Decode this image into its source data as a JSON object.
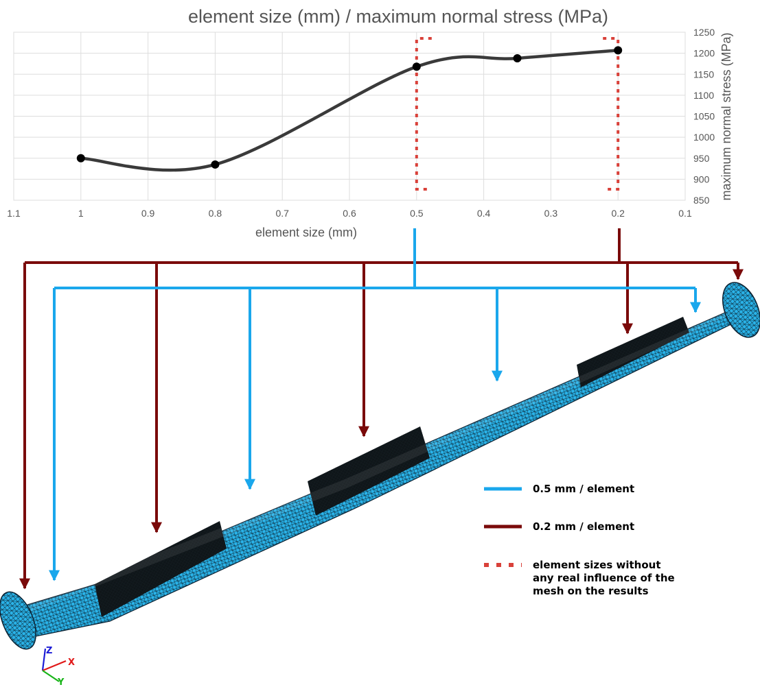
{
  "chart_data": {
    "type": "line",
    "title": "element size (mm) / maximum normal stress (MPa)",
    "xlabel": "element size (mm)",
    "ylabel": "maximum normal stress (MPa)",
    "x_reversed": true,
    "xlim": [
      0.1,
      1.1
    ],
    "ylim": [
      850,
      1250
    ],
    "xticks": [
      "1.1",
      "1",
      "0.9",
      "0.8",
      "0.7",
      "0.6",
      "0.5",
      "0.4",
      "0.3",
      "0.2",
      "0.1"
    ],
    "yticks": [
      "850",
      "900",
      "950",
      "1000",
      "1050",
      "1100",
      "1150",
      "1200",
      "1250"
    ],
    "grid": true,
    "y_axis_side": "right",
    "series": [
      {
        "x": [
          1.0,
          0.8,
          0.5,
          0.35,
          0.2
        ],
        "y": [
          950,
          935,
          1168,
          1188,
          1207
        ],
        "smooth": true
      }
    ],
    "highlight_brackets": [
      0.5,
      0.2
    ]
  },
  "legend": {
    "items": [
      {
        "label": "0.5 mm / element",
        "color": "#1aa7ec",
        "style": "solid"
      },
      {
        "label": "0.2 mm / element",
        "color": "#7a0a0a",
        "style": "solid"
      },
      {
        "label": [
          "element sizes without",
          "any real influence of the",
          "mesh on the results"
        ],
        "color": "#d9413a",
        "style": "dotted"
      }
    ]
  },
  "triad": {
    "z": "Z",
    "x": "X",
    "y": "Y"
  },
  "colors": {
    "blue_mesh": "#1aa7ec",
    "dark_red": "#7a0a0a",
    "bracket_red": "#d9413a",
    "curve": "#3a3a3a",
    "grid": "#dddddd"
  }
}
